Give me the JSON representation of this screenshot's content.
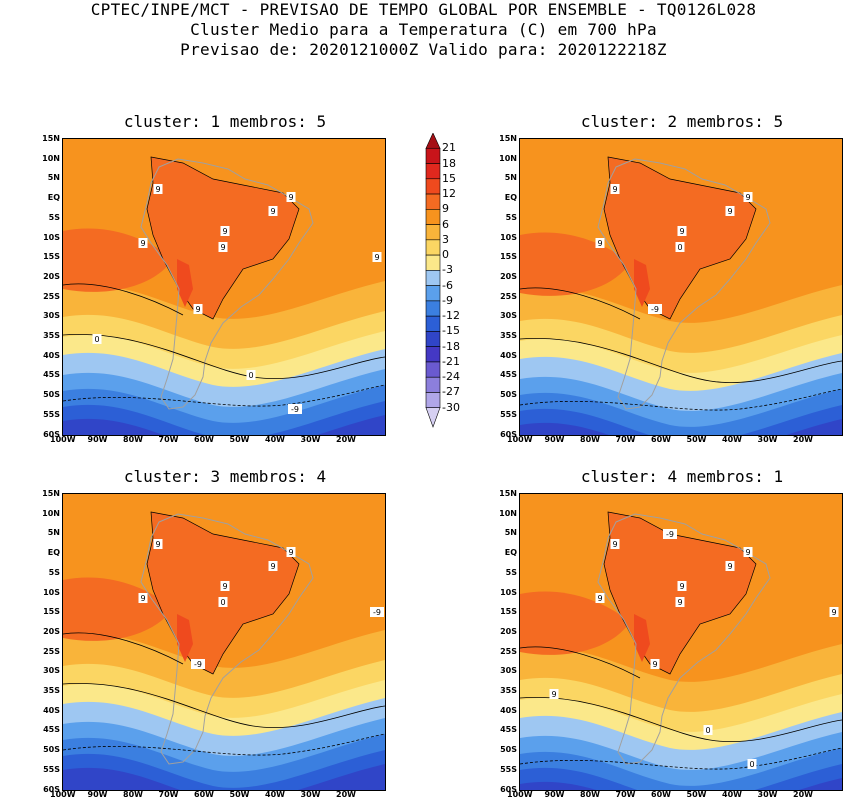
{
  "header": {
    "line1": "CPTEC/INPE/MCT - PREVISAO DE TEMPO GLOBAL POR ENSEMBLE - TQ0126L028",
    "line2": "Cluster Medio para a Temperatura (C) em 700 hPa",
    "line3": "Previsao de: 2020121000Z   Valido para: 2020122218Z"
  },
  "panels": [
    {
      "title": "cluster: 1  membros: 5",
      "contour_labels": [
        "9",
        "9",
        "9",
        "9",
        "9",
        "9",
        "9",
        "9",
        "0",
        "0",
        "-9"
      ]
    },
    {
      "title": "cluster: 2  membros: 5",
      "contour_labels": [
        "9",
        "9",
        "9",
        "9",
        "9",
        "0",
        "-9"
      ]
    },
    {
      "title": "cluster: 3  membros: 4",
      "contour_labels": [
        "9",
        "9",
        "9",
        "9",
        "9",
        "0",
        "-9",
        "-9"
      ]
    },
    {
      "title": "cluster: 4  membros: 1",
      "contour_labels": [
        "9",
        "9",
        "9",
        "9",
        "9",
        "9",
        "9",
        "9",
        "9",
        "0",
        "0",
        "-9"
      ]
    }
  ],
  "lat_labels": [
    "15N",
    "10N",
    "5N",
    "EQ",
    "5S",
    "10S",
    "15S",
    "20S",
    "25S",
    "30S",
    "35S",
    "40S",
    "45S",
    "50S",
    "55S",
    "60S"
  ],
  "lon_labels": [
    "100W",
    "90W",
    "80W",
    "70W",
    "60W",
    "50W",
    "40W",
    "30W",
    "20W"
  ],
  "colorbar": {
    "levels": [
      "21",
      "18",
      "15",
      "12",
      "9",
      "6",
      "3",
      "0",
      "-3",
      "-6",
      "-9",
      "-12",
      "-15",
      "-18",
      "-21",
      "-24",
      "-27",
      "-30"
    ],
    "colors": [
      "#a50f15",
      "#c8141a",
      "#e0281e",
      "#ef4a1e",
      "#f46b22",
      "#f7931e",
      "#f9b43a",
      "#fbd663",
      "#fbe88a",
      "#9ec7f2",
      "#5ba0ec",
      "#3b7fe0",
      "#2c5fd6",
      "#3045c8",
      "#4438c4",
      "#6a5ad0",
      "#8c7fdc",
      "#b0a6e8",
      "#d6d0f2"
    ]
  },
  "colors": {
    "land_border": "#a0a0a0",
    "contour": "#000000"
  }
}
